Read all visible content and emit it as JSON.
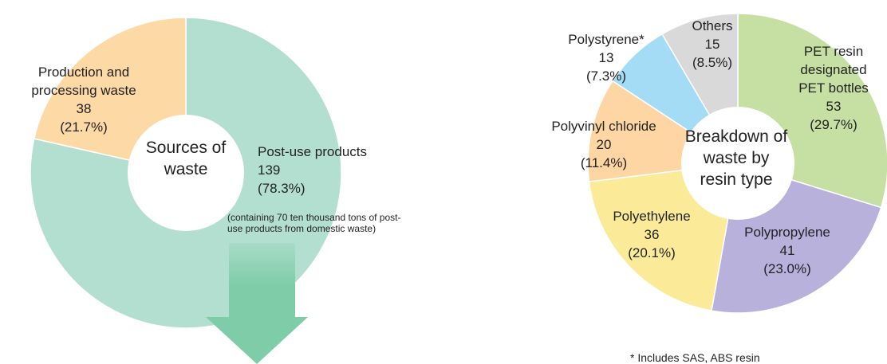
{
  "chart_data": [
    {
      "type": "donut",
      "center_label": "Sources of waste",
      "categories": [
        "Post-use products",
        "Production and processing waste"
      ],
      "values": [
        139,
        38
      ],
      "percent_labels": [
        "(78.3%)",
        "(21.7%)"
      ],
      "colors": [
        "#b3dfd0",
        "#fdd9a5"
      ],
      "note": "(containing 70 ten thousand tons of post-use products from domestic waste)"
    },
    {
      "type": "donut",
      "center_label": "Breakdown of waste by resin type",
      "categories": [
        "PET resin designated PET bottles",
        "Polypropylene",
        "Polyethylene",
        "Polyvinyl chloride",
        "Polystyrene*",
        "Others"
      ],
      "values": [
        53,
        41,
        36,
        20,
        13,
        15
      ],
      "percent_labels": [
        "(29.7%)",
        "(23.0%)",
        "(20.1%)",
        "(11.4%)",
        "(7.3%)",
        "(8.5%)"
      ],
      "colors": [
        "#c6e0a3",
        "#b7b1dc",
        "#fbeb99",
        "#fdd6a3",
        "#a3dcf4",
        "#d9d9d9"
      ],
      "footnote": "* Includes SAS, ABS resin"
    }
  ]
}
